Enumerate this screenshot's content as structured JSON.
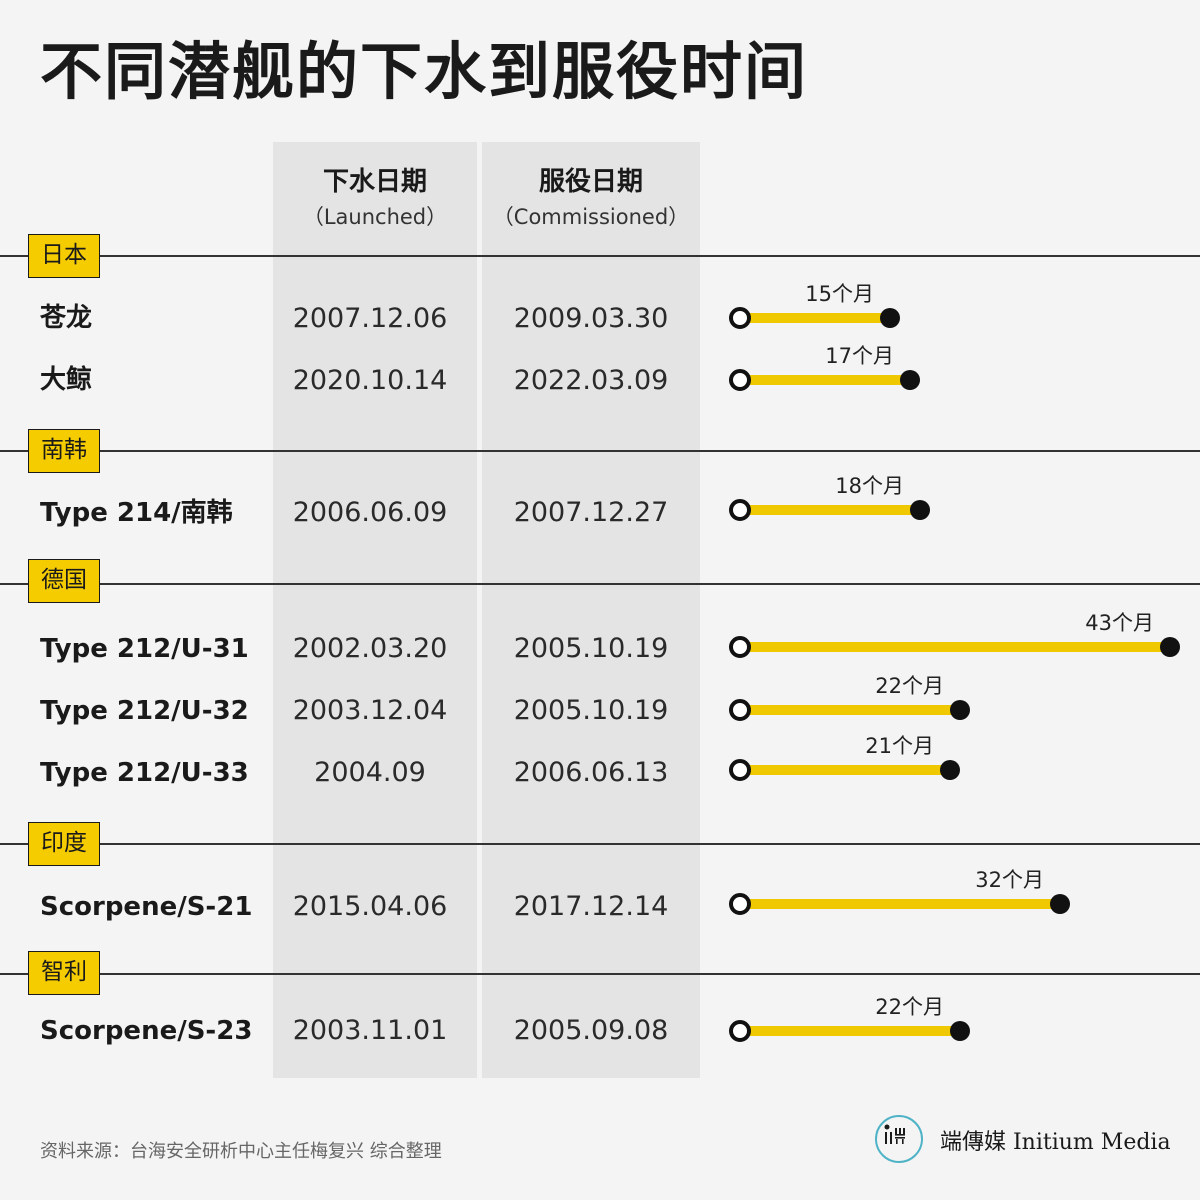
{
  "title": "不同潜舰的下水到服役时间",
  "columns": {
    "launched_zh": "下水日期",
    "launched_en": "（Launched）",
    "commissioned_zh": "服役日期",
    "commissioned_en": "（Commissioned）"
  },
  "groups": [
    {
      "country": "日本"
    },
    {
      "country": "南韩"
    },
    {
      "country": "德国"
    },
    {
      "country": "印度"
    },
    {
      "country": "智利"
    }
  ],
  "rows": [
    {
      "name": "苍龙",
      "launched": "2007.12.06",
      "commissioned": "2009.03.30",
      "duration_label": "15个月"
    },
    {
      "name": "大鲸",
      "launched": "2020.10.14",
      "commissioned": "2022.03.09",
      "duration_label": "17个月"
    },
    {
      "name": "Type 214/南韩",
      "launched": "2006.06.09",
      "commissioned": "2007.12.27",
      "duration_label": "18个月"
    },
    {
      "name": "Type 212/U-31",
      "launched": "2002.03.20",
      "commissioned": "2005.10.19",
      "duration_label": "43个月"
    },
    {
      "name": "Type 212/U-32",
      "launched": "2003.12.04",
      "commissioned": "2005.10.19",
      "duration_label": "22个月"
    },
    {
      "name": "Type 212/U-33",
      "launched": "2004.09",
      "commissioned": "2006.06.13",
      "duration_label": "21个月"
    },
    {
      "name": "Scorpene/S-21",
      "launched": "2015.04.06",
      "commissioned": "2017.12.14",
      "duration_label": "32个月"
    },
    {
      "name": "Scorpene/S-23",
      "launched": "2003.11.01",
      "commissioned": "2005.09.08",
      "duration_label": "22个月"
    }
  ],
  "chart_data": {
    "type": "bar",
    "title": "不同潜舰的下水到服役时间",
    "categories": [
      "苍龙",
      "大鲸",
      "Type 214/南韩",
      "Type 212/U-31",
      "Type 212/U-32",
      "Type 212/U-33",
      "Scorpene/S-21",
      "Scorpene/S-23"
    ],
    "values": [
      15,
      17,
      18,
      43,
      22,
      21,
      32,
      22
    ],
    "value_labels": [
      "15个月",
      "17个月",
      "18个月",
      "43个月",
      "22个月",
      "21个月",
      "32个月",
      "22个月"
    ],
    "groups": [
      "日本",
      "日本",
      "南韩",
      "德国",
      "德国",
      "德国",
      "印度",
      "智利"
    ],
    "orientation": "horizontal",
    "xlim": [
      0,
      43
    ],
    "bar_color": "#f0c800"
  },
  "source": "资料来源：台海安全研析中心主任梅复兴 综合整理",
  "logo": {
    "text": "端傳媒 Initium Media"
  }
}
